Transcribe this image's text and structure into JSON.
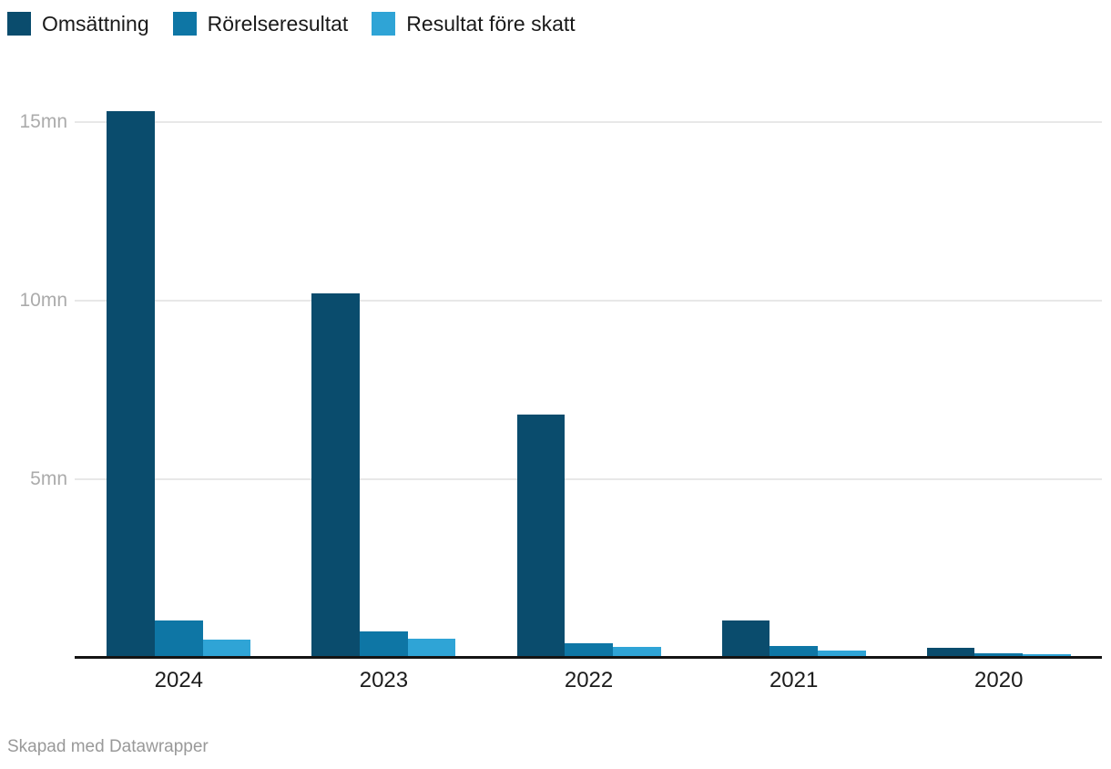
{
  "chart_data": {
    "type": "bar",
    "title": "",
    "categories": [
      "2024",
      "2023",
      "2022",
      "2021",
      "2020"
    ],
    "series": [
      {
        "name": "Omsättning",
        "color": "#0a4c6d",
        "values": [
          15.3,
          10.2,
          6.8,
          1.05,
          0.27
        ]
      },
      {
        "name": "Rörelseresultat",
        "color": "#0e76a5",
        "values": [
          1.05,
          0.74,
          0.41,
          0.34,
          0.14
        ]
      },
      {
        "name": "Resultat före skatt",
        "color": "#2fa4d6",
        "values": [
          0.52,
          0.54,
          0.31,
          0.2,
          0.09
        ]
      }
    ],
    "y_ticks": [
      {
        "value": 5,
        "label": "5mn"
      },
      {
        "value": 10,
        "label": "10mn"
      },
      {
        "value": 15,
        "label": "15mn"
      }
    ],
    "ylim": [
      0,
      15.75
    ],
    "unit": "mn",
    "grid": "horizontal",
    "legend_position": "top-left",
    "colors": {
      "gridline": "#e8e8e8",
      "axis_line": "#141414",
      "ytick_label": "#ababab",
      "xtick_label": "#1c1c1c",
      "legend_text": "#1a1a1a"
    }
  },
  "footer": {
    "text": "Skapad med Datawrapper"
  }
}
